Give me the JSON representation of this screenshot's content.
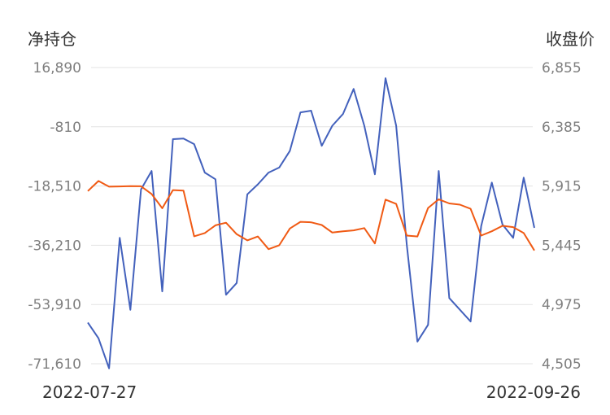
{
  "chart_data": {
    "type": "line",
    "left_axis_title": "净持仓",
    "right_axis_title": "收盘价",
    "left_ticks": [
      "16,890",
      "-810",
      "-18,510",
      "-36,210",
      "-53,910",
      "-71,610"
    ],
    "right_ticks": [
      "6,855",
      "6,385",
      "5,915",
      "5,445",
      "4,975",
      "4,505"
    ],
    "left_range": [
      -71610,
      16890
    ],
    "right_range": [
      4505,
      6855
    ],
    "x_start_label": "2022-07-27",
    "x_end_label": "2022-09-26",
    "grid": true,
    "series": [
      {
        "axis": "left",
        "color": "#4361bc",
        "values": [
          -59300,
          -64000,
          -73000,
          -34000,
          -55500,
          -19500,
          -14000,
          -50000,
          -4500,
          -4300,
          -6000,
          -14500,
          -16500,
          -51000,
          -47500,
          -21000,
          -18000,
          -14500,
          -13000,
          -8000,
          3500,
          4000,
          -6500,
          -500,
          3000,
          10500,
          -500,
          -15000,
          13700,
          -500,
          -36000,
          -65000,
          -60000,
          -14000,
          -52000,
          -55500,
          -59000,
          -30500,
          -17500,
          -30000,
          -34000,
          -16000,
          -31000
        ],
        "length_comment": ""
      },
      {
        "axis": "right",
        "color": "#f05a14",
        "values": [
          5875,
          5955,
          5910,
          5912,
          5914,
          5913,
          5852,
          5739,
          5883,
          5879,
          5516,
          5542,
          5603,
          5624,
          5533,
          5484,
          5515,
          5414,
          5445,
          5578,
          5631,
          5627,
          5606,
          5546,
          5556,
          5563,
          5581,
          5459,
          5807,
          5773,
          5522,
          5515,
          5741,
          5810,
          5777,
          5767,
          5734,
          5522,
          5556,
          5599,
          5589,
          5542,
          5404
        ]
      }
    ]
  }
}
